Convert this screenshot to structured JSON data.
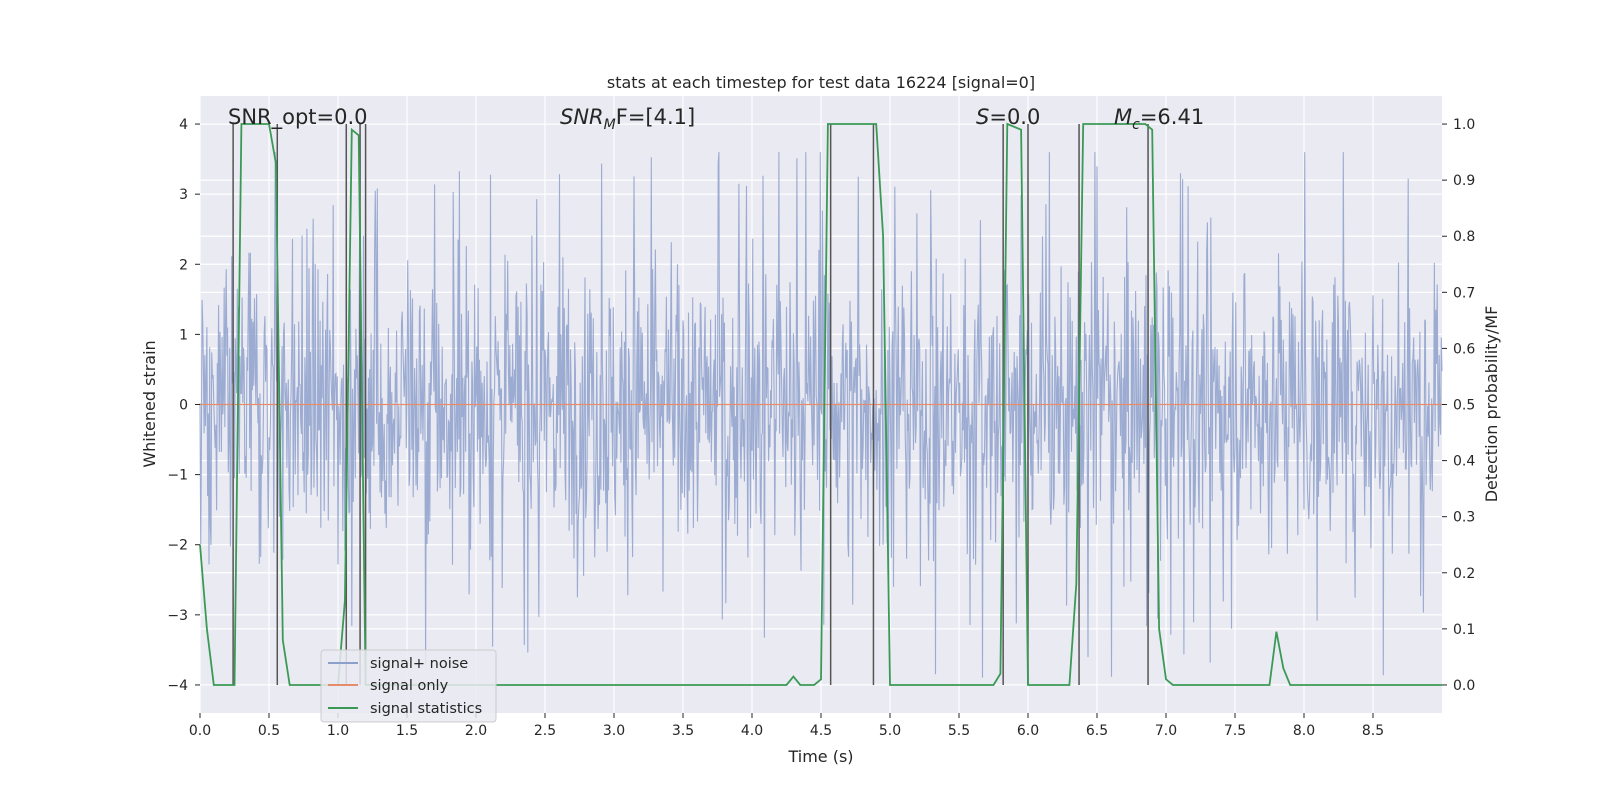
{
  "chart_data": {
    "type": "line",
    "title": "stats at each timestep for test data 16224 [signal=0]",
    "xlabel": "Time (s)",
    "ylabel": "Whitened strain",
    "y2label": "Detection probability/MF",
    "xlim": [
      0.0,
      9.0
    ],
    "ylim": [
      -4.4,
      4.4
    ],
    "y2lim": [
      -0.05,
      1.05
    ],
    "x_ticks": [
      "0.0",
      "0.5",
      "1.0",
      "1.5",
      "2.0",
      "2.5",
      "3.0",
      "3.5",
      "4.0",
      "4.5",
      "5.0",
      "5.5",
      "6.0",
      "6.5",
      "7.0",
      "7.5",
      "8.0",
      "8.5"
    ],
    "y_ticks": [
      "4",
      "3",
      "2",
      "1",
      "0",
      "−1",
      "−2",
      "−3",
      "−4"
    ],
    "y2_ticks": [
      "1.0",
      "0.9",
      "0.8",
      "0.7",
      "0.6",
      "0.5",
      "0.4",
      "0.3",
      "0.2",
      "0.1",
      "0.0"
    ],
    "grid": true,
    "legend": {
      "placement": "lower-left",
      "entries": [
        {
          "name": "signal+ noise",
          "color": "#8da0cb"
        },
        {
          "name": "signal only",
          "color": "#e58c6a"
        },
        {
          "name": "signal statistics",
          "color": "#3a9a55"
        }
      ]
    },
    "annotations": {
      "snr_opt": "SNR_opt=0.0",
      "snr_mf_main": "SNR",
      "snr_mf_sub": "M",
      "snr_mf_rest": "F=[4.1]",
      "s_main": "S",
      "s_rest": "=0.0",
      "mc_main": "M",
      "mc_sub": "c",
      "mc_rest": "=6.41"
    },
    "noise_series": {
      "name": "signal+ noise",
      "color": "#8da0cb",
      "typical_amplitude": 1.6,
      "max_abs": 4.0,
      "x_range": [
        0.0,
        9.0
      ]
    },
    "signal_only": {
      "name": "signal only",
      "color": "#e58c6a",
      "value": 0.0
    },
    "statistics_series": {
      "name": "signal statistics",
      "color": "#3a9a55",
      "x": [
        0.0,
        0.05,
        0.1,
        0.2,
        0.25,
        0.3,
        0.35,
        0.5,
        0.55,
        0.6,
        0.65,
        0.7,
        0.75,
        0.8,
        0.95,
        1.0,
        1.05,
        1.1,
        1.15,
        1.2,
        1.25,
        1.3,
        4.2,
        4.25,
        4.3,
        4.35,
        4.45,
        4.5,
        4.55,
        4.6,
        4.65,
        4.9,
        4.95,
        5.0,
        5.75,
        5.8,
        5.85,
        5.95,
        6.0,
        6.05,
        6.3,
        6.35,
        6.4,
        6.45,
        6.85,
        6.9,
        6.95,
        7.0,
        7.05,
        7.1,
        7.75,
        7.8,
        7.85,
        7.9,
        8.0,
        9.0
      ],
      "y": [
        0.25,
        0.1,
        0.0,
        0.0,
        0.0,
        1.0,
        1.0,
        1.0,
        0.93,
        0.08,
        0.0,
        0.0,
        0.0,
        0.0,
        0.0,
        0.0,
        0.15,
        0.99,
        0.98,
        0.0,
        0.0,
        0.0,
        0.0,
        0.0,
        0.015,
        0.0,
        0.0,
        0.01,
        1.0,
        1.0,
        1.0,
        1.0,
        0.8,
        0.0,
        0.0,
        0.02,
        1.0,
        0.99,
        0.0,
        0.0,
        0.0,
        0.18,
        1.0,
        1.0,
        1.0,
        0.99,
        0.1,
        0.01,
        0.0,
        0.0,
        0.0,
        0.095,
        0.03,
        0.0,
        0.0,
        0.0
      ]
    },
    "vertical_markers": {
      "color": "#555555",
      "x": [
        0.24,
        0.56,
        1.06,
        1.16,
        1.2,
        4.57,
        4.88,
        5.82,
        6.0,
        6.37,
        6.87
      ]
    }
  }
}
